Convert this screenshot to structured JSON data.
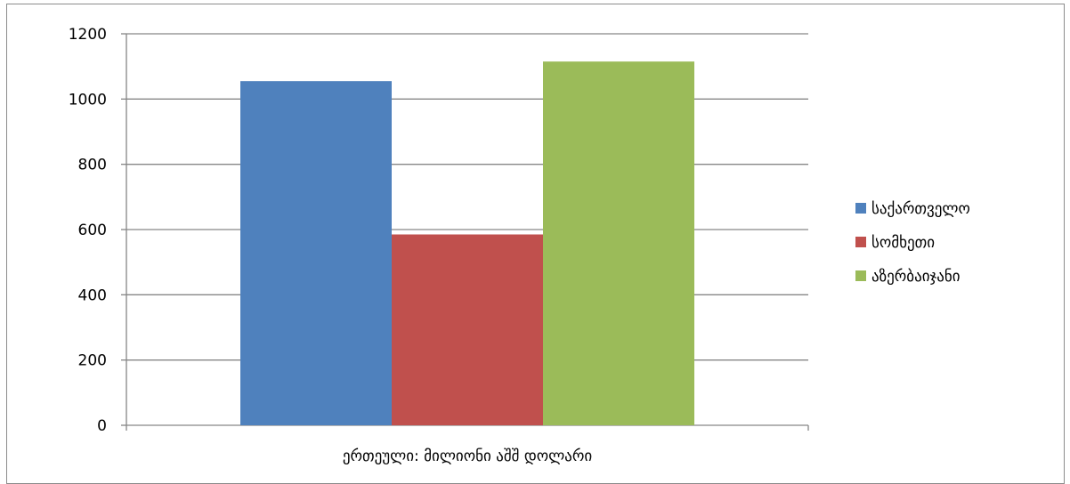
{
  "chart_data": {
    "type": "bar",
    "title": "",
    "xlabel": "",
    "ylabel": "",
    "categories": [
      "ერთეული: მილიონი აშშ დოლარი"
    ],
    "series": [
      {
        "name": "საქართველო",
        "values": [
          1055
        ],
        "color": "#4f81bd"
      },
      {
        "name": "სომხეთი",
        "values": [
          585
        ],
        "color": "#c0504d"
      },
      {
        "name": "აზერბაიჯანი",
        "values": [
          1115
        ],
        "color": "#9bbb59"
      }
    ],
    "ylim": [
      0,
      1200
    ],
    "yticks": [
      "0",
      "200",
      "400",
      "600",
      "800",
      "1000",
      "1200"
    ],
    "grid": true,
    "legend_position": "right"
  }
}
